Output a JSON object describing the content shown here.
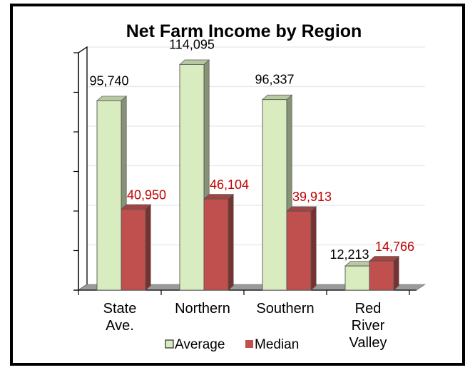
{
  "chart_data": {
    "type": "bar",
    "title": "Net Farm Income by Region",
    "xlabel": "",
    "ylabel": "",
    "categories": [
      [
        "State",
        "Ave."
      ],
      [
        "Northern"
      ],
      [
        "Southern"
      ],
      [
        "Red",
        "River",
        "Valley"
      ]
    ],
    "series": [
      {
        "name": "Average",
        "values": [
          95740,
          114095,
          96337,
          12213
        ],
        "labels": [
          "95,740",
          "114,095",
          "96,337",
          "12,213"
        ],
        "color": "#d9ecbf",
        "label_color": "#000000"
      },
      {
        "name": "Median",
        "values": [
          40950,
          46104,
          39913,
          14766
        ],
        "labels": [
          "40,950",
          "46,104",
          "39,913",
          "14,766"
        ],
        "color": "#c0504d",
        "label_color": "#c00000"
      }
    ],
    "ylim": [
      0,
      120000
    ],
    "grid": true,
    "legend": "bottom",
    "style": "3d-clustered-column"
  }
}
